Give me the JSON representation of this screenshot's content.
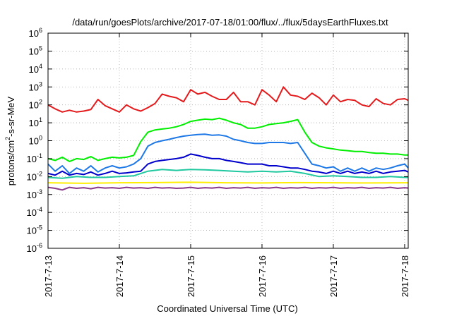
{
  "chart_data": {
    "type": "line",
    "title": "/data/run/goesPlots/archive/2017-07-18/01:00/flux/../flux/5daysEarthFluxes.txt",
    "xlabel": "Coordinated Universal Time (UTC)",
    "ylabel": {
      "base": "protons/cm",
      "sup": "2",
      "rest": "-s-sr-MeV"
    },
    "x_unit": "days",
    "xlim": [
      0,
      5.05
    ],
    "x_ticks": [
      {
        "value": 0,
        "label": "2017-7-13"
      },
      {
        "value": 1,
        "label": "2017-7-14"
      },
      {
        "value": 2,
        "label": "2017-7-15"
      },
      {
        "value": 3,
        "label": "2017-7-16"
      },
      {
        "value": 4,
        "label": "2017-7-17"
      },
      {
        "value": 5,
        "label": "2017-7-18"
      }
    ],
    "y_scale": "log",
    "ylim_exp": [
      -6,
      6
    ],
    "y_ticks": [
      {
        "exp": -6,
        "label": "10",
        "sup": "-6"
      },
      {
        "exp": -5,
        "label": "10",
        "sup": "-5"
      },
      {
        "exp": -4,
        "label": "10",
        "sup": "-4"
      },
      {
        "exp": -3,
        "label": "10",
        "sup": "-3"
      },
      {
        "exp": -2,
        "label": "10",
        "sup": "-2"
      },
      {
        "exp": -1,
        "label": "10",
        "sup": "-1"
      },
      {
        "exp": 0,
        "label": "10",
        "sup": "0"
      },
      {
        "exp": 1,
        "label": "10",
        "sup": "1"
      },
      {
        "exp": 2,
        "label": "10",
        "sup": "2"
      },
      {
        "exp": 3,
        "label": "10",
        "sup": "3"
      },
      {
        "exp": 4,
        "label": "10",
        "sup": "4"
      },
      {
        "exp": 5,
        "label": "10",
        "sup": "5"
      },
      {
        "exp": 6,
        "label": "10",
        "sup": "6"
      }
    ],
    "grid": true,
    "series": [
      {
        "color": "#e41a1c",
        "x": [
          0,
          0.1,
          0.2,
          0.3,
          0.4,
          0.5,
          0.6,
          0.7,
          0.8,
          0.9,
          1.0,
          1.1,
          1.2,
          1.3,
          1.4,
          1.5,
          1.6,
          1.7,
          1.8,
          1.9,
          2.0,
          2.1,
          2.2,
          2.3,
          2.4,
          2.5,
          2.6,
          2.7,
          2.8,
          2.9,
          3.0,
          3.1,
          3.2,
          3.3,
          3.4,
          3.5,
          3.6,
          3.7,
          3.8,
          3.9,
          4.0,
          4.1,
          4.2,
          4.3,
          4.4,
          4.5,
          4.6,
          4.7,
          4.8,
          4.9,
          5.0,
          5.05
        ],
        "y": [
          100,
          60,
          40,
          50,
          40,
          45,
          55,
          200,
          90,
          60,
          40,
          100,
          60,
          45,
          70,
          120,
          400,
          300,
          250,
          150,
          700,
          400,
          500,
          300,
          200,
          200,
          500,
          150,
          150,
          100,
          700,
          350,
          150,
          1000,
          350,
          300,
          200,
          450,
          250,
          100,
          350,
          150,
          200,
          180,
          100,
          80,
          220,
          120,
          100,
          200,
          220,
          180
        ]
      },
      {
        "color": "#00ee00",
        "x": [
          0,
          0.1,
          0.2,
          0.3,
          0.4,
          0.5,
          0.6,
          0.7,
          0.8,
          0.9,
          1.0,
          1.1,
          1.2,
          1.3,
          1.4,
          1.5,
          1.6,
          1.7,
          1.8,
          1.9,
          2.0,
          2.1,
          2.2,
          2.3,
          2.4,
          2.5,
          2.6,
          2.7,
          2.8,
          2.9,
          3.0,
          3.1,
          3.2,
          3.3,
          3.4,
          3.5,
          3.6,
          3.7,
          3.8,
          3.9,
          4.0,
          4.1,
          4.2,
          4.3,
          4.4,
          4.5,
          4.6,
          4.7,
          4.8,
          4.9,
          5.0,
          5.05
        ],
        "y": [
          0.1,
          0.08,
          0.12,
          0.07,
          0.1,
          0.09,
          0.13,
          0.08,
          0.1,
          0.12,
          0.11,
          0.12,
          0.15,
          0.9,
          3,
          4,
          4.5,
          5,
          6,
          8,
          12,
          14,
          16,
          15,
          18,
          14,
          10,
          8,
          5,
          5,
          6,
          8,
          9,
          10,
          12,
          15,
          3,
          0.8,
          0.5,
          0.4,
          0.35,
          0.3,
          0.28,
          0.25,
          0.25,
          0.22,
          0.2,
          0.2,
          0.18,
          0.18,
          0.16,
          0.16
        ]
      },
      {
        "color": "#1e78e6",
        "x": [
          0,
          0.1,
          0.2,
          0.3,
          0.4,
          0.5,
          0.6,
          0.7,
          0.8,
          0.9,
          1.0,
          1.1,
          1.2,
          1.3,
          1.4,
          1.5,
          1.6,
          1.7,
          1.8,
          1.9,
          2.0,
          2.1,
          2.2,
          2.3,
          2.4,
          2.5,
          2.6,
          2.7,
          2.8,
          2.9,
          3.0,
          3.1,
          3.2,
          3.3,
          3.4,
          3.5,
          3.6,
          3.7,
          3.8,
          3.9,
          4.0,
          4.1,
          4.2,
          4.3,
          4.4,
          4.5,
          4.6,
          4.7,
          4.8,
          4.9,
          5.0,
          5.05
        ],
        "y": [
          0.05,
          0.02,
          0.04,
          0.015,
          0.03,
          0.02,
          0.04,
          0.018,
          0.03,
          0.04,
          0.03,
          0.035,
          0.05,
          0.1,
          0.5,
          0.8,
          1,
          1.2,
          1.5,
          1.8,
          2,
          2.2,
          2.3,
          2,
          2.1,
          1.8,
          1.2,
          1,
          0.8,
          0.7,
          0.7,
          0.8,
          0.8,
          0.8,
          0.7,
          0.8,
          0.2,
          0.05,
          0.04,
          0.03,
          0.035,
          0.02,
          0.03,
          0.02,
          0.03,
          0.02,
          0.03,
          0.025,
          0.03,
          0.04,
          0.05,
          0.03
        ]
      },
      {
        "color": "#0000cc",
        "x": [
          0,
          0.1,
          0.2,
          0.3,
          0.4,
          0.5,
          0.6,
          0.7,
          0.8,
          0.9,
          1.0,
          1.1,
          1.2,
          1.3,
          1.4,
          1.5,
          1.6,
          1.7,
          1.8,
          1.9,
          2.0,
          2.1,
          2.2,
          2.3,
          2.4,
          2.5,
          2.6,
          2.7,
          2.8,
          2.9,
          3.0,
          3.1,
          3.2,
          3.3,
          3.4,
          3.5,
          3.6,
          3.7,
          3.8,
          3.9,
          4.0,
          4.1,
          4.2,
          4.3,
          4.4,
          4.5,
          4.6,
          4.7,
          4.8,
          4.9,
          5.0,
          5.05
        ],
        "y": [
          0.015,
          0.012,
          0.02,
          0.012,
          0.015,
          0.013,
          0.018,
          0.012,
          0.015,
          0.02,
          0.015,
          0.016,
          0.018,
          0.02,
          0.05,
          0.07,
          0.08,
          0.09,
          0.1,
          0.12,
          0.18,
          0.15,
          0.12,
          0.1,
          0.1,
          0.08,
          0.07,
          0.06,
          0.05,
          0.05,
          0.05,
          0.04,
          0.04,
          0.035,
          0.03,
          0.03,
          0.025,
          0.02,
          0.018,
          0.015,
          0.02,
          0.015,
          0.02,
          0.015,
          0.018,
          0.015,
          0.02,
          0.015,
          0.018,
          0.02,
          0.022,
          0.018
        ]
      },
      {
        "color": "#20c8a0",
        "x": [
          0,
          0.2,
          0.4,
          0.6,
          0.8,
          1.0,
          1.2,
          1.4,
          1.6,
          1.8,
          2.0,
          2.2,
          2.4,
          2.6,
          2.8,
          3.0,
          3.2,
          3.4,
          3.6,
          3.8,
          4.0,
          4.2,
          4.4,
          4.6,
          4.8,
          5.0,
          5.05
        ],
        "y": [
          0.009,
          0.008,
          0.01,
          0.009,
          0.009,
          0.01,
          0.011,
          0.02,
          0.025,
          0.022,
          0.025,
          0.024,
          0.022,
          0.02,
          0.018,
          0.02,
          0.018,
          0.02,
          0.015,
          0.01,
          0.011,
          0.01,
          0.009,
          0.009,
          0.01,
          0.009,
          0.009
        ]
      },
      {
        "color": "#ffee00",
        "x": [
          0,
          0.5,
          1.0,
          1.5,
          2.0,
          2.5,
          3.0,
          3.5,
          4.0,
          4.5,
          5.0,
          5.05
        ],
        "y": [
          0.0045,
          0.0042,
          0.0045,
          0.0046,
          0.0048,
          0.0045,
          0.0044,
          0.0046,
          0.0045,
          0.0044,
          0.0045,
          0.0045
        ]
      },
      {
        "color": "#8b3a8b",
        "x": [
          0,
          0.1,
          0.2,
          0.3,
          0.4,
          0.5,
          0.6,
          0.7,
          0.8,
          0.9,
          1.0,
          1.1,
          1.2,
          1.3,
          1.4,
          1.5,
          1.6,
          1.7,
          1.8,
          1.9,
          2.0,
          2.1,
          2.2,
          2.3,
          2.4,
          2.5,
          2.6,
          2.7,
          2.8,
          2.9,
          3.0,
          3.1,
          3.2,
          3.3,
          3.4,
          3.5,
          3.6,
          3.7,
          3.8,
          3.9,
          4.0,
          4.1,
          4.2,
          4.3,
          4.4,
          4.5,
          4.6,
          4.7,
          4.8,
          4.9,
          5.0,
          5.05
        ],
        "y": [
          0.0025,
          0.0022,
          0.0018,
          0.0025,
          0.0022,
          0.0024,
          0.0021,
          0.0025,
          0.0023,
          0.0024,
          0.0022,
          0.0025,
          0.0023,
          0.0024,
          0.0022,
          0.0025,
          0.0023,
          0.0024,
          0.0022,
          0.0023,
          0.0025,
          0.0022,
          0.0024,
          0.0023,
          0.0025,
          0.0022,
          0.0024,
          0.0023,
          0.0025,
          0.0022,
          0.0024,
          0.0023,
          0.0025,
          0.0022,
          0.0024,
          0.0023,
          0.0025,
          0.0022,
          0.0024,
          0.0023,
          0.0025,
          0.0022,
          0.0024,
          0.0023,
          0.0025,
          0.0022,
          0.0024,
          0.0023,
          0.0025,
          0.0022,
          0.0024,
          0.0023
        ]
      }
    ]
  }
}
